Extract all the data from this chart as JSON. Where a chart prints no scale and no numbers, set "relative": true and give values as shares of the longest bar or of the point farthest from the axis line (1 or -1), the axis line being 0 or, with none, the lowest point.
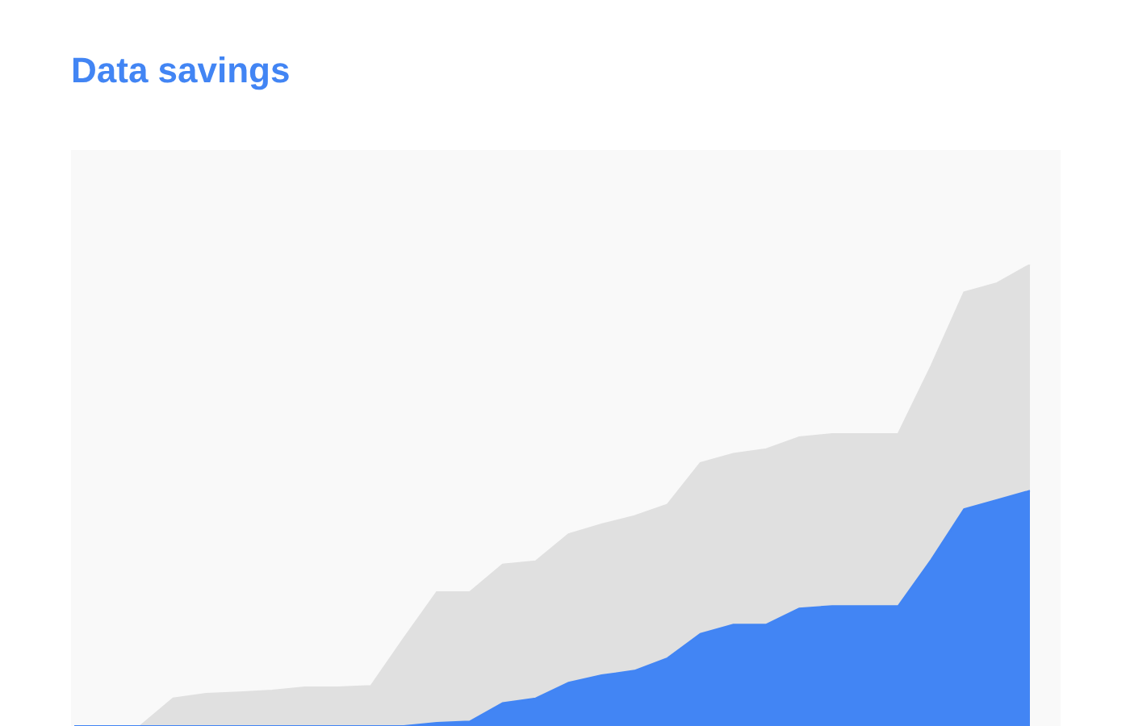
{
  "chart_data": {
    "type": "area",
    "title": "Data savings",
    "relative": true,
    "tick_labels": false,
    "categories": [
      null,
      null,
      null,
      null,
      null,
      null,
      null,
      null,
      null,
      null,
      null,
      null,
      null,
      null,
      null,
      null,
      null,
      null,
      null,
      null,
      null,
      null,
      null,
      null,
      null,
      null,
      null,
      null,
      null,
      null
    ],
    "series": [
      {
        "color": "#e0e0e0",
        "values": [
          0,
          0,
          0,
          0.06,
          0.07,
          0.073,
          0.077,
          0.084,
          0.084,
          0.087,
          0.19,
          0.29,
          0.29,
          0.35,
          0.357,
          0.416,
          0.437,
          0.455,
          0.48,
          0.57,
          0.59,
          0.6,
          0.626,
          0.633,
          0.633,
          0.633,
          0.78,
          0.94,
          0.96,
          1
        ]
      },
      {
        "color": "#4285f4",
        "values": [
          0,
          0,
          0,
          0,
          0,
          0,
          0,
          0,
          0,
          0,
          0,
          0.007,
          0.01,
          0.05,
          0.06,
          0.094,
          0.11,
          0.12,
          0.147,
          0.2,
          0.22,
          0.22,
          0.255,
          0.26,
          0.26,
          0.26,
          0.36,
          0.47,
          0.49,
          0.51
        ]
      }
    ]
  }
}
